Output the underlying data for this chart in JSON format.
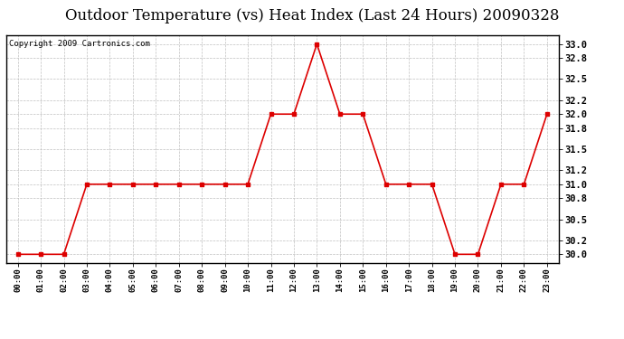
{
  "title": "Outdoor Temperature (vs) Heat Index (Last 24 Hours) 20090328",
  "copyright": "Copyright 2009 Cartronics.com",
  "x_labels": [
    "00:00",
    "01:00",
    "02:00",
    "03:00",
    "04:00",
    "05:00",
    "06:00",
    "07:00",
    "08:00",
    "09:00",
    "10:00",
    "11:00",
    "12:00",
    "13:00",
    "14:00",
    "15:00",
    "16:00",
    "17:00",
    "18:00",
    "19:00",
    "20:00",
    "21:00",
    "22:00",
    "23:00"
  ],
  "y_values": [
    30.0,
    30.0,
    30.0,
    31.0,
    31.0,
    31.0,
    31.0,
    31.0,
    31.0,
    31.0,
    31.0,
    32.0,
    32.0,
    33.0,
    32.0,
    32.0,
    31.0,
    31.0,
    31.0,
    30.0,
    30.0,
    31.0,
    31.0,
    32.0
  ],
  "ylim_min": 29.88,
  "ylim_max": 33.12,
  "yticks": [
    30.0,
    30.2,
    30.5,
    30.8,
    31.0,
    31.2,
    31.5,
    31.8,
    32.0,
    32.2,
    32.5,
    32.8,
    33.0
  ],
  "line_color": "#dd0000",
  "marker": "s",
  "marker_size": 2.5,
  "fig_bg_color": "#ffffff",
  "plot_bg_color": "#ffffff",
  "grid_color": "#c0c0c0",
  "title_fontsize": 12,
  "copyright_fontsize": 6.5,
  "tick_label_fontsize": 7.5,
  "xtick_fontsize": 6.5
}
